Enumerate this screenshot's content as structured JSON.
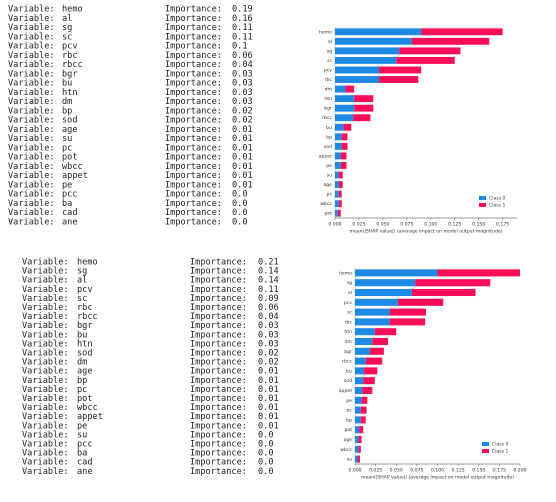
{
  "label_variable": "Variable:",
  "label_importance": "Importance:",
  "lists": [
    {
      "rows": [
        [
          "hemo",
          "0.19"
        ],
        [
          "al",
          "0.16"
        ],
        [
          "sg",
          "0.11"
        ],
        [
          "sc",
          "0.11"
        ],
        [
          "pcv",
          "0.1"
        ],
        [
          "rbc",
          "0.06"
        ],
        [
          "rbcc",
          "0.04"
        ],
        [
          "bgr",
          "0.03"
        ],
        [
          "bu",
          "0.03"
        ],
        [
          "htn",
          "0.03"
        ],
        [
          "dm",
          "0.03"
        ],
        [
          "bp",
          "0.02"
        ],
        [
          "sod",
          "0.02"
        ],
        [
          "age",
          "0.01"
        ],
        [
          "su",
          "0.01"
        ],
        [
          "pc",
          "0.01"
        ],
        [
          "pot",
          "0.01"
        ],
        [
          "wbcc",
          "0.01"
        ],
        [
          "appet",
          "0.01"
        ],
        [
          "pe",
          "0.01"
        ],
        [
          "pcc",
          "0.0"
        ],
        [
          "ba",
          "0.0"
        ],
        [
          "cad",
          "0.0"
        ],
        [
          "ane",
          "0.0"
        ]
      ]
    },
    {
      "rows": [
        [
          "hemo",
          "0.21"
        ],
        [
          "sg",
          "0.14"
        ],
        [
          "al",
          "0.14"
        ],
        [
          "pcv",
          "0.11"
        ],
        [
          "sc",
          "0.09"
        ],
        [
          "rbc",
          "0.06"
        ],
        [
          "rbcc",
          "0.04"
        ],
        [
          "bgr",
          "0.03"
        ],
        [
          "bu",
          "0.03"
        ],
        [
          "htn",
          "0.03"
        ],
        [
          "sod",
          "0.02"
        ],
        [
          "dm",
          "0.02"
        ],
        [
          "age",
          "0.01"
        ],
        [
          "bp",
          "0.01"
        ],
        [
          "pc",
          "0.01"
        ],
        [
          "pot",
          "0.01"
        ],
        [
          "wbcc",
          "0.01"
        ],
        [
          "appet",
          "0.01"
        ],
        [
          "pe",
          "0.01"
        ],
        [
          "su",
          "0.0"
        ],
        [
          "pcc",
          "0.0"
        ],
        [
          "ba",
          "0.0"
        ],
        [
          "cad",
          "0.0"
        ],
        [
          "ane",
          "0.0"
        ]
      ]
    }
  ],
  "chart_data": [
    {
      "type": "stacked_barh",
      "x_label": "mean(|SHAP value|) (average impact on model output magnitude)",
      "categories": [
        "hemo",
        "al",
        "sg",
        "sc",
        "pcv",
        "rbc",
        "dm",
        "htn",
        "bgr",
        "rbcc",
        "bu",
        "bp",
        "sod",
        "appet",
        "pe",
        "su",
        "age",
        "pc",
        "wbcc",
        "pot"
      ],
      "series": [
        {
          "name": "Class 0",
          "color": "#1e88e5",
          "values": [
            0.09,
            0.08,
            0.067,
            0.064,
            0.046,
            0.046,
            0.011,
            0.02,
            0.02,
            0.019,
            0.009,
            0.007,
            0.007,
            0.006,
            0.006,
            0.004,
            0.004,
            0.004,
            0.004,
            0.003
          ]
        },
        {
          "name": "Class 1",
          "color": "#ff0d57",
          "values": [
            0.085,
            0.081,
            0.064,
            0.061,
            0.044,
            0.041,
            0.009,
            0.02,
            0.02,
            0.018,
            0.008,
            0.006,
            0.006,
            0.006,
            0.006,
            0.004,
            0.004,
            0.003,
            0.003,
            0.003
          ]
        }
      ],
      "xlim": [
        0,
        0.19
      ],
      "xticks": [
        {
          "value": 0,
          "label": "0.000"
        },
        {
          "value": 0.025,
          "label": "0.025"
        },
        {
          "value": 0.05,
          "label": "0.050"
        },
        {
          "value": 0.075,
          "label": "0.075"
        },
        {
          "value": 0.1,
          "label": "0.100"
        },
        {
          "value": 0.125,
          "label": "0.125"
        },
        {
          "value": 0.15,
          "label": "0.150"
        },
        {
          "value": 0.175,
          "label": "0.175"
        }
      ],
      "legend": "lower right"
    },
    {
      "type": "stacked_barh",
      "x_label": "mean(|SHAP value|) (average impact on model output magnitude)",
      "categories": [
        "hemo",
        "sg",
        "al",
        "pcv",
        "sc",
        "rbc",
        "htn",
        "dm",
        "bgr",
        "rbcc",
        "bu",
        "sod",
        "appet",
        "pe",
        "pc",
        "bp",
        "pot",
        "age",
        "wbcc",
        "su"
      ],
      "series": [
        {
          "name": "Class 0",
          "color": "#1e88e5",
          "values": [
            0.1,
            0.073,
            0.069,
            0.052,
            0.042,
            0.042,
            0.024,
            0.021,
            0.018,
            0.013,
            0.011,
            0.01,
            0.009,
            0.008,
            0.007,
            0.007,
            0.005,
            0.004,
            0.004,
            0.003
          ]
        },
        {
          "name": "Class 1",
          "color": "#ff0d57",
          "values": [
            0.1,
            0.091,
            0.077,
            0.055,
            0.044,
            0.043,
            0.026,
            0.019,
            0.017,
            0.02,
            0.016,
            0.014,
            0.012,
            0.007,
            0.007,
            0.006,
            0.005,
            0.004,
            0.003,
            0.003
          ]
        }
      ],
      "xlim": [
        0,
        0.2
      ],
      "xticks": [
        {
          "value": 0,
          "label": "0.000"
        },
        {
          "value": 0.025,
          "label": "0.025"
        },
        {
          "value": 0.05,
          "label": "0.050"
        },
        {
          "value": 0.075,
          "label": "0.075"
        },
        {
          "value": 0.1,
          "label": "0.100"
        },
        {
          "value": 0.125,
          "label": "0.125"
        },
        {
          "value": 0.15,
          "label": "0.150"
        },
        {
          "value": 0.175,
          "label": "0.175"
        },
        {
          "value": 0.2,
          "label": "0.200"
        }
      ],
      "legend": "lower right"
    }
  ]
}
